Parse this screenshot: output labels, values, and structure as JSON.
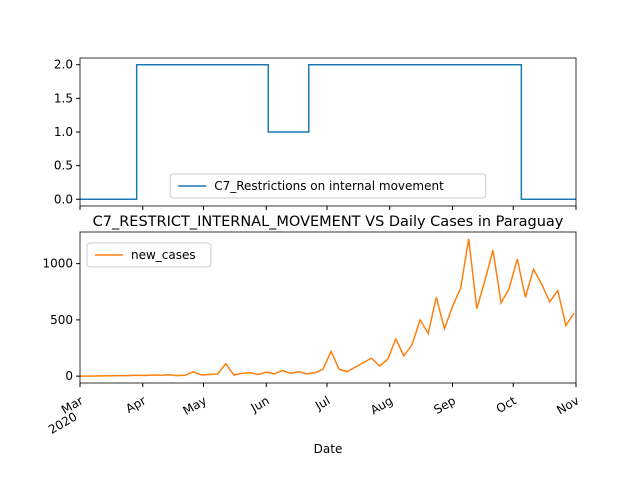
{
  "chart_data": [
    {
      "type": "line",
      "drawstyle": "steps-post",
      "x": [
        0,
        28,
        93,
        113,
        218,
        245
      ],
      "series": [
        {
          "name": "C7_Restrictions on internal movement",
          "color": "#1f77b4",
          "values": [
            0,
            2,
            1,
            2,
            0,
            0
          ]
        }
      ],
      "xlim": [
        0,
        245
      ],
      "xticks": [
        0,
        31,
        61,
        92,
        122,
        153,
        184,
        214,
        245
      ],
      "xticklabels": false,
      "ylim": [
        -0.1,
        2.1
      ],
      "yticks": [
        {
          "value": 0,
          "label": "0.0"
        },
        {
          "value": 0.5,
          "label": "0.5"
        },
        {
          "value": 1,
          "label": "1.0"
        },
        {
          "value": 1.5,
          "label": "1.5"
        },
        {
          "value": 2,
          "label": "2.0"
        }
      ],
      "legend": "lower center"
    },
    {
      "type": "line",
      "title": "C7_RESTRICT_INTERNAL_MOVEMENT VS Daily Cases in Paraguay",
      "x_label": "Date",
      "x": [
        0,
        4,
        8,
        12,
        16,
        20,
        24,
        28,
        32,
        36,
        40,
        44,
        48,
        52,
        56,
        60,
        64,
        68,
        72,
        76,
        80,
        84,
        88,
        92,
        96,
        100,
        104,
        108,
        112,
        116,
        120,
        124,
        128,
        132,
        136,
        140,
        144,
        148,
        152,
        156,
        160,
        164,
        168,
        172,
        176,
        180,
        184,
        188,
        192,
        196,
        200,
        204,
        208,
        212,
        216,
        220,
        224,
        228,
        232,
        236,
        240,
        244
      ],
      "series": [
        {
          "name": "new_cases",
          "color": "#ff7f0e",
          "values": [
            0,
            0,
            1,
            2,
            3,
            5,
            4,
            8,
            6,
            10,
            8,
            12,
            5,
            8,
            40,
            10,
            15,
            20,
            110,
            10,
            25,
            30,
            15,
            35,
            20,
            50,
            25,
            40,
            20,
            30,
            60,
            220,
            60,
            40,
            80,
            120,
            160,
            90,
            150,
            330,
            180,
            280,
            500,
            380,
            700,
            420,
            620,
            780,
            1220,
            600,
            850,
            1120,
            650,
            780,
            1040,
            700,
            950,
            820,
            660,
            760,
            450,
            560
          ]
        }
      ],
      "xlim": [
        0,
        245
      ],
      "xticks": [
        {
          "value": 0,
          "label": "Mar"
        },
        {
          "value": 31,
          "label": "Apr"
        },
        {
          "value": 61,
          "label": "May"
        },
        {
          "value": 92,
          "label": "Jun"
        },
        {
          "value": 122,
          "label": "Jul"
        },
        {
          "value": 153,
          "label": "Aug"
        },
        {
          "value": 184,
          "label": "Sep"
        },
        {
          "value": 214,
          "label": "Oct"
        },
        {
          "value": 245,
          "label": "Nov"
        }
      ],
      "xtick_year": "2020",
      "ylim": [
        -61,
        1281
      ],
      "yticks": [
        0,
        500,
        1000
      ],
      "legend": "upper left"
    }
  ]
}
